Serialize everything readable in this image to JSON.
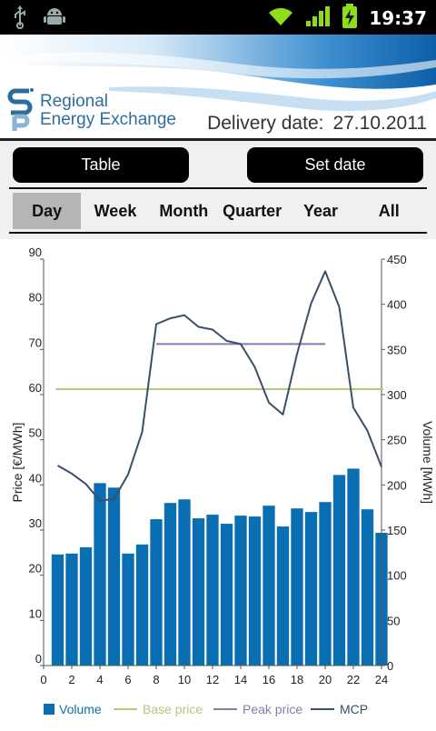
{
  "status_bar": {
    "time": "19:37"
  },
  "brand": {
    "line1": "Regional",
    "line2": "Energy Exchange"
  },
  "header": {
    "delivery_label": "Delivery date:",
    "delivery_value": "27.10.2011"
  },
  "buttons": {
    "table": "Table",
    "set_date": "Set date"
  },
  "tabs": [
    {
      "label": "Day",
      "active": true
    },
    {
      "label": "Week",
      "active": false
    },
    {
      "label": "Month",
      "active": false
    },
    {
      "label": "Quarter",
      "active": false
    },
    {
      "label": "Year",
      "active": false
    },
    {
      "label": "All",
      "active": false
    }
  ],
  "colors": {
    "volume": "#0a6fb2",
    "base_price": "#b6c77a",
    "peak_price": "#8a7ab0",
    "mcp": "#3a4f6a"
  },
  "chart_data": {
    "type": "bar",
    "xlabel": "",
    "ylabel": "Price [€/MWh]",
    "y2label": "Volume [MWh]",
    "xlim": [
      0,
      24
    ],
    "ylim": [
      0,
      90
    ],
    "y2lim": [
      0,
      450
    ],
    "x_ticks": [
      0,
      2,
      4,
      6,
      8,
      10,
      12,
      14,
      16,
      18,
      20,
      22,
      24
    ],
    "y_ticks": [
      0,
      10,
      20,
      30,
      40,
      50,
      60,
      70,
      80,
      90
    ],
    "y2_ticks": [
      0,
      50,
      100,
      150,
      200,
      250,
      300,
      350,
      400,
      450
    ],
    "legend": [
      "Volume",
      "Base price",
      "Peak price",
      "MCP"
    ],
    "legend_position": "bottom",
    "hours": [
      1,
      2,
      3,
      4,
      5,
      6,
      7,
      8,
      9,
      10,
      11,
      12,
      13,
      14,
      15,
      16,
      17,
      18,
      19,
      20,
      21,
      22,
      23,
      24
    ],
    "volume": [
      123,
      124,
      131,
      202,
      197,
      124,
      134,
      162,
      180,
      184,
      163,
      167,
      157,
      166,
      165,
      177,
      154,
      174,
      170,
      181,
      211,
      218,
      173,
      147
    ],
    "base_price": {
      "value": 61.2,
      "from": 1,
      "to": 24
    },
    "peak_price": {
      "value": 71.2,
      "from": 8,
      "to": 20
    },
    "mcp": [
      44.3,
      42.5,
      40.2,
      36.5,
      36.9,
      42.3,
      51.7,
      75.6,
      76.9,
      77.6,
      75.0,
      74.4,
      71.9,
      71.2,
      66.1,
      58.2,
      55.6,
      69.0,
      80.2,
      87.3,
      79.4,
      57.1,
      52.0,
      44.0
    ]
  }
}
